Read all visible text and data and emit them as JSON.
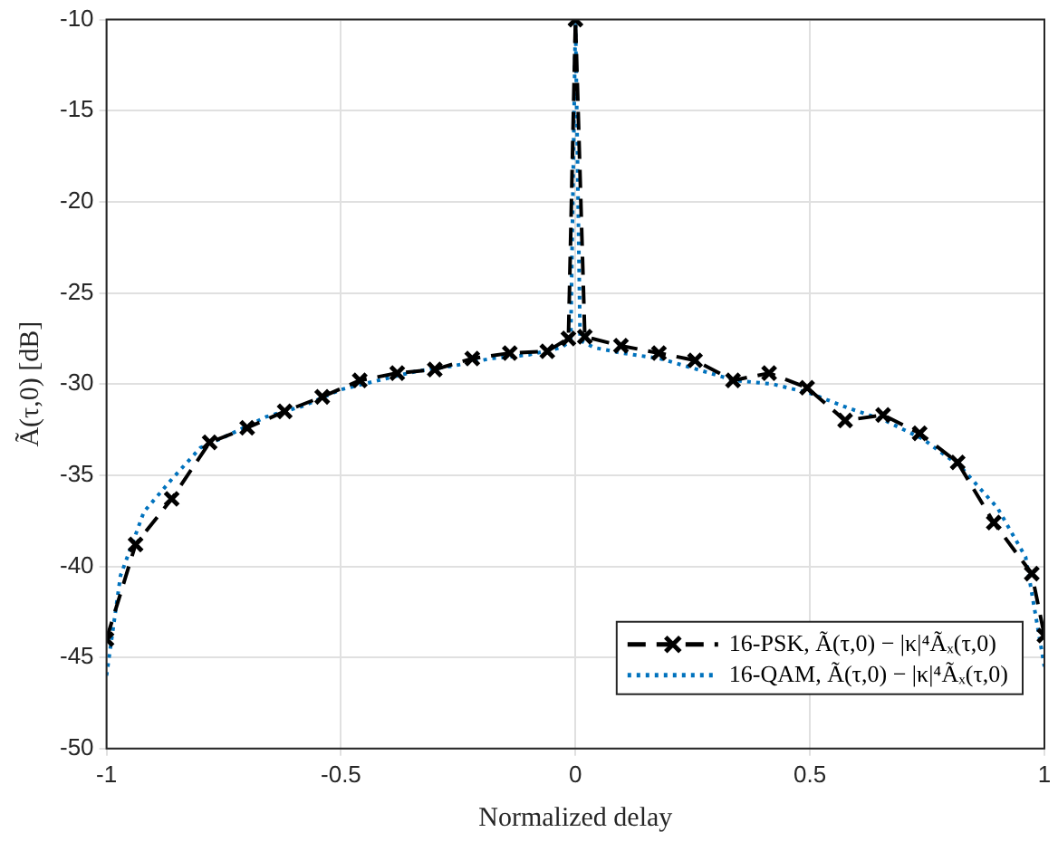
{
  "chart_data": {
    "type": "line",
    "xlabel": "Normalized delay",
    "ylabel": "Ã(τ,0) [dB]",
    "xlim": [
      -1,
      1
    ],
    "xticks": [
      -1,
      -0.5,
      0,
      0.5,
      1
    ],
    "ylim": [
      -50,
      -10
    ],
    "yticks": [
      -50,
      -45,
      -40,
      -35,
      -30,
      -25,
      -20,
      -15,
      -10
    ],
    "grid": true,
    "legend": "bottom right",
    "series": [
      {
        "name": "16-PSK, Ã(τ,0) − |κ|⁴Ãₓ(τ,0)",
        "color": "#000000",
        "marker": "cross",
        "line_style": "dashed",
        "x": [
          -1,
          -0.938,
          -0.861,
          -0.78,
          -0.7,
          -0.62,
          -0.54,
          -0.46,
          -0.38,
          -0.3,
          -0.22,
          -0.14,
          -0.06,
          -0.015,
          0,
          0.02,
          0.097,
          0.178,
          0.255,
          0.336,
          0.413,
          0.494,
          0.575,
          0.656,
          0.734,
          0.815,
          0.892,
          0.973,
          1
        ],
        "values": [
          -44,
          -38.8,
          -36.3,
          -33.2,
          -32.4,
          -31.5,
          -30.7,
          -29.8,
          -29.4,
          -29.2,
          -28.6,
          -28.3,
          -28.2,
          -27.5,
          -10,
          -27.4,
          -27.9,
          -28.3,
          -28.7,
          -29.8,
          -29.4,
          -30.2,
          -32,
          -31.7,
          -32.7,
          -34.3,
          -37.6,
          -40.4,
          -43.8
        ]
      },
      {
        "name": "16-QAM, Ã(τ,0) − |κ|⁴Ãₓ(τ,0)",
        "color": "#0072bd",
        "marker": "none",
        "line_style": "dotted",
        "x": [
          -1,
          -0.97,
          -0.92,
          -0.86,
          -0.8,
          -0.74,
          -0.66,
          -0.58,
          -0.5,
          -0.42,
          -0.34,
          -0.26,
          -0.18,
          -0.1,
          -0.03,
          -0.01,
          0,
          0.01,
          0.04,
          0.1,
          0.18,
          0.26,
          0.34,
          0.42,
          0.5,
          0.58,
          0.66,
          0.74,
          0.82,
          0.9,
          0.96,
          1
        ],
        "values": [
          -46,
          -40.5,
          -37,
          -35.2,
          -33.5,
          -32.8,
          -31.8,
          -31.2,
          -30.3,
          -29.8,
          -29.3,
          -29,
          -28.6,
          -28.4,
          -28,
          -27.6,
          -10,
          -27.6,
          -28,
          -28.3,
          -28.6,
          -29.2,
          -29.8,
          -30,
          -30.5,
          -31.3,
          -32,
          -33,
          -34.5,
          -36.8,
          -39.5,
          -45.5
        ]
      }
    ]
  }
}
